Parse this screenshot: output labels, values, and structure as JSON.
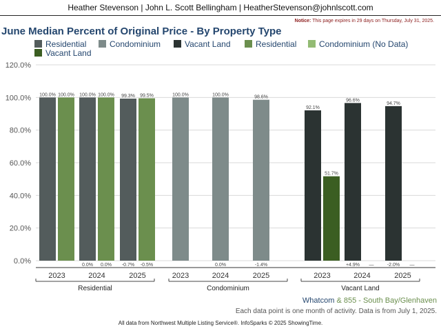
{
  "header": {
    "agents": "Heather Stevenson | John L. Scott Bellingham | HeatherStevenson@johnlscott.com"
  },
  "notice": {
    "label": "Notice:",
    "text": "This page expires in 29 days on Thursday, July 31, 2025."
  },
  "footer": {
    "region": "Whatcom",
    "ampersand": "&",
    "area": "855 - South Bay/Glenhaven",
    "data_note": "Each data point is one month of activity. Data is from July 1, 2025.",
    "source": "All data from Northwest Multiple Listing Service®. InfoSparks © 2025 ShowingTime."
  },
  "colors": {
    "residential_prior": "#535c5c",
    "residential_june": "#6b8f4e",
    "condominium": "#7e8b8a",
    "vacant_land_prior": "#2b3332",
    "vacant_land_june": "#3b5e22",
    "condo_nodata": "#93bb74",
    "title": "#24466e"
  },
  "chart_data": {
    "type": "bar",
    "title": "June Median Percent of Original Price - By Property Type",
    "ylim": [
      0,
      120
    ],
    "yticks": [
      "0.0%",
      "20.0%",
      "40.0%",
      "60.0%",
      "80.0%",
      "100.0%",
      "120.0%"
    ],
    "grid": true,
    "legend_position": "top",
    "legend": [
      {
        "label": "Residential",
        "color": "#535c5c"
      },
      {
        "label": "Condominium",
        "color": "#7e8b8a"
      },
      {
        "label": "Vacant Land",
        "color": "#2b3332"
      },
      {
        "label": "Residential",
        "color": "#6b8f4e"
      },
      {
        "label": "Condominium (No Data)",
        "color": "#93bb74"
      },
      {
        "label": "Vacant Land",
        "color": "#3b5e22"
      }
    ],
    "groups": [
      {
        "name": "Residential",
        "years": [
          {
            "year": "2023",
            "bars": [
              {
                "value": 100.0,
                "label": "100.0%",
                "color": "#535c5c"
              },
              {
                "value": 100.0,
                "label": "100.0%",
                "color": "#6b8f4e"
              }
            ],
            "changes": [
              "",
              ""
            ]
          },
          {
            "year": "2024",
            "bars": [
              {
                "value": 100.0,
                "label": "100.0%",
                "color": "#535c5c"
              },
              {
                "value": 100.0,
                "label": "100.0%",
                "color": "#6b8f4e"
              }
            ],
            "changes": [
              "0.0%",
              "0.0%"
            ]
          },
          {
            "year": "2025",
            "bars": [
              {
                "value": 99.3,
                "label": "99.3%",
                "color": "#535c5c"
              },
              {
                "value": 99.5,
                "label": "99.5%",
                "color": "#6b8f4e"
              }
            ],
            "changes": [
              "-0.7%",
              "-0.5%"
            ]
          }
        ]
      },
      {
        "name": "Condominium",
        "years": [
          {
            "year": "2023",
            "bars": [
              {
                "value": 100.0,
                "label": "100.0%",
                "color": "#7e8b8a"
              }
            ],
            "changes": [
              ""
            ]
          },
          {
            "year": "2024",
            "bars": [
              {
                "value": 100.0,
                "label": "100.0%",
                "color": "#7e8b8a"
              }
            ],
            "changes": [
              "0.0%"
            ]
          },
          {
            "year": "2025",
            "bars": [
              {
                "value": 98.6,
                "label": "98.6%",
                "color": "#7e8b8a"
              }
            ],
            "changes": [
              "-1.4%"
            ]
          }
        ]
      },
      {
        "name": "Vacant Land",
        "years": [
          {
            "year": "2023",
            "bars": [
              {
                "value": 92.1,
                "label": "92.1%",
                "color": "#2b3332"
              },
              {
                "value": 51.7,
                "label": "51.7%",
                "color": "#3b5e22"
              }
            ],
            "changes": [
              "",
              ""
            ]
          },
          {
            "year": "2024",
            "bars": [
              {
                "value": 96.6,
                "label": "96.6%",
                "color": "#2b3332"
              },
              {
                "value": null,
                "label": "",
                "color": "#3b5e22"
              }
            ],
            "changes": [
              "+4.9%",
              "—"
            ]
          },
          {
            "year": "2025",
            "bars": [
              {
                "value": 94.7,
                "label": "94.7%",
                "color": "#2b3332"
              },
              {
                "value": null,
                "label": "",
                "color": "#3b5e22"
              }
            ],
            "changes": [
              "-2.0%",
              "—"
            ]
          }
        ]
      }
    ]
  }
}
